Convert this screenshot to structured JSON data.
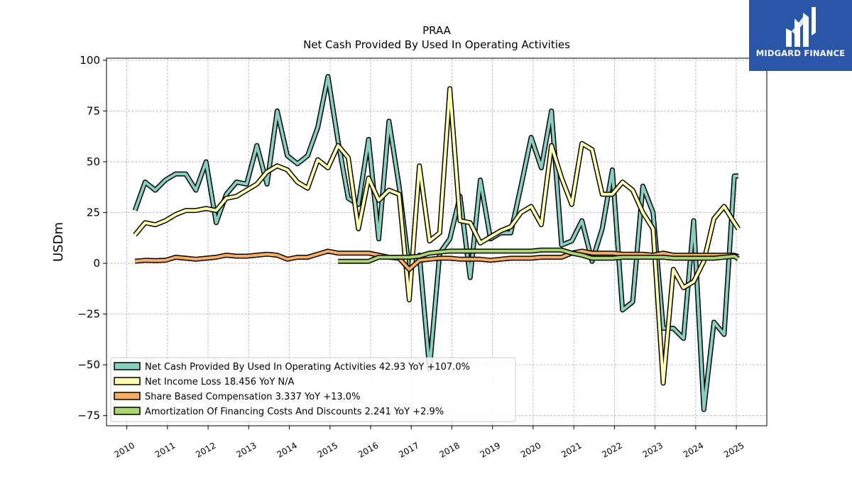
{
  "brand": {
    "name": "MIDGARD FINANCE",
    "logo_icon": "midgard-m-icon",
    "bg_color": "#2a56a8"
  },
  "chart_data": {
    "type": "line",
    "title": "PRAA",
    "subtitle": "Net Cash Provided By Used In Operating Activities",
    "ylabel": "USDm",
    "xlabel": "",
    "ylim": [
      -80,
      101
    ],
    "xlim": [
      2009.5,
      2025.75
    ],
    "yticks": [
      100,
      75,
      50,
      25,
      0,
      -25,
      -50,
      -75
    ],
    "xticks": [
      2010,
      2011,
      2012,
      2013,
      2014,
      2015,
      2016,
      2017,
      2018,
      2019,
      2020,
      2021,
      2022,
      2023,
      2024,
      2025
    ],
    "grid": true,
    "legend_position": "lower-left",
    "series": [
      {
        "name": "Net Cash Provided By Used In Operating Activities",
        "legend_label": "Net Cash Provided By Used In Operating Activities  42.93 YoY +107.0%",
        "color": "#88cfc2",
        "x": [
          2010.2,
          2010.45,
          2010.7,
          2010.95,
          2011.2,
          2011.45,
          2011.7,
          2011.95,
          2012.2,
          2012.45,
          2012.7,
          2012.95,
          2013.2,
          2013.45,
          2013.7,
          2013.95,
          2014.2,
          2014.45,
          2014.7,
          2014.95,
          2015.2,
          2015.45,
          2015.7,
          2015.95,
          2016.2,
          2016.45,
          2016.7,
          2016.95,
          2017.2,
          2017.45,
          2017.7,
          2017.95,
          2018.2,
          2018.45,
          2018.7,
          2018.95,
          2019.2,
          2019.45,
          2019.7,
          2019.95,
          2020.2,
          2020.45,
          2020.7,
          2020.95,
          2021.2,
          2021.45,
          2021.7,
          2021.95,
          2022.2,
          2022.45,
          2022.7,
          2022.95,
          2023.2,
          2023.45,
          2023.7,
          2023.95,
          2024.2,
          2024.45,
          2024.7,
          2024.95,
          2025.05
        ],
        "y": [
          26,
          40,
          36,
          41,
          44,
          44,
          36,
          50,
          20,
          34,
          40,
          39,
          58,
          39,
          75,
          53,
          49,
          53,
          67,
          92,
          60,
          32,
          29,
          61,
          12,
          70,
          38,
          -3,
          4,
          -52,
          5,
          12,
          33,
          -7,
          41,
          12,
          15,
          15,
          38,
          62,
          47,
          75,
          9,
          11,
          21,
          1,
          17,
          46,
          -23,
          -19,
          38,
          25,
          -32,
          -32,
          -37,
          21,
          -72,
          -29,
          -35,
          43,
          43
        ]
      },
      {
        "name": "Net Income Loss",
        "legend_label": "Net Income Loss  18.456 YoY N/A",
        "color": "#ffffb0",
        "x": [
          2010.2,
          2010.45,
          2010.7,
          2010.95,
          2011.2,
          2011.45,
          2011.7,
          2011.95,
          2012.2,
          2012.45,
          2012.7,
          2012.95,
          2013.2,
          2013.45,
          2013.7,
          2013.95,
          2014.2,
          2014.45,
          2014.7,
          2014.95,
          2015.2,
          2015.45,
          2015.7,
          2015.95,
          2016.2,
          2016.45,
          2016.7,
          2016.95,
          2017.2,
          2017.45,
          2017.7,
          2017.95,
          2018.2,
          2018.45,
          2018.7,
          2018.95,
          2019.2,
          2019.45,
          2019.7,
          2019.95,
          2020.2,
          2020.45,
          2020.7,
          2020.95,
          2021.2,
          2021.45,
          2021.7,
          2021.95,
          2022.2,
          2022.45,
          2022.7,
          2022.95,
          2023.2,
          2023.45,
          2023.7,
          2023.95,
          2024.2,
          2024.45,
          2024.7,
          2024.95,
          2025.05
        ],
        "y": [
          14,
          20,
          19,
          21,
          24,
          26,
          26,
          27,
          26,
          32,
          33,
          36,
          39,
          45,
          48,
          46,
          40,
          37,
          51,
          47,
          58,
          52,
          17,
          42,
          31,
          36,
          34,
          -18,
          48,
          11,
          15,
          86,
          21,
          20,
          10,
          13,
          16,
          18,
          25,
          28,
          19,
          58,
          42,
          29,
          59,
          56,
          34,
          34,
          40,
          36,
          25,
          17,
          -59,
          -3,
          -12,
          -9,
          1,
          22,
          28,
          20,
          17
        ]
      },
      {
        "name": "Share Based Compensation",
        "legend_label": "Share Based Compensation  3.337 YoY +13.0%",
        "color": "#f7ad63",
        "x": [
          2010.2,
          2010.45,
          2010.7,
          2010.95,
          2011.2,
          2011.45,
          2011.7,
          2011.95,
          2012.2,
          2012.45,
          2012.7,
          2012.95,
          2013.2,
          2013.45,
          2013.7,
          2013.95,
          2014.2,
          2014.45,
          2014.7,
          2014.95,
          2015.2,
          2015.45,
          2015.7,
          2015.95,
          2016.2,
          2016.45,
          2016.7,
          2016.95,
          2017.2,
          2017.45,
          2017.7,
          2017.95,
          2018.2,
          2018.45,
          2018.7,
          2018.95,
          2019.2,
          2019.45,
          2019.7,
          2019.95,
          2020.2,
          2020.45,
          2020.7,
          2020.95,
          2021.2,
          2021.45,
          2021.7,
          2021.95,
          2022.2,
          2022.45,
          2022.7,
          2022.95,
          2023.2,
          2023.45,
          2023.7,
          2023.95,
          2024.2,
          2024.45,
          2024.7,
          2024.95,
          2025.05
        ],
        "y": [
          1,
          1.5,
          1.3,
          1.5,
          3,
          2.5,
          2,
          2.5,
          3,
          4,
          3.5,
          3.5,
          4,
          4.5,
          4,
          2,
          3,
          3,
          4.5,
          6,
          5,
          5,
          5,
          5,
          4,
          3,
          2.5,
          -3,
          1.5,
          2,
          2.5,
          2.5,
          2,
          2,
          2,
          1.5,
          2,
          2.5,
          2.5,
          2.5,
          3,
          3,
          3,
          5,
          6,
          5,
          5,
          5,
          4.5,
          4.5,
          4.5,
          4,
          5,
          4,
          4,
          4,
          4,
          4,
          4,
          4,
          3.3
        ]
      },
      {
        "name": "Amortization Of Financing Costs And Discounts",
        "legend_label": "Amortization Of Financing Costs And Discounts  2.241 YoY +2.9%",
        "color": "#a9d66e",
        "x": [
          2015.2,
          2015.45,
          2015.7,
          2015.95,
          2016.2,
          2016.45,
          2016.7,
          2016.95,
          2017.2,
          2017.45,
          2017.7,
          2017.95,
          2018.2,
          2018.45,
          2018.7,
          2018.95,
          2019.2,
          2019.45,
          2019.7,
          2019.95,
          2020.2,
          2020.45,
          2020.7,
          2020.95,
          2021.2,
          2021.45,
          2021.7,
          2021.95,
          2022.2,
          2022.45,
          2022.7,
          2022.95,
          2023.2,
          2023.45,
          2023.7,
          2023.95,
          2024.2,
          2024.45,
          2024.7,
          2024.95,
          2025.05
        ],
        "y": [
          1,
          1,
          1,
          1,
          3,
          3,
          3,
          3,
          3.5,
          5,
          5.5,
          6,
          6,
          6,
          6,
          6,
          6,
          6,
          6,
          6,
          6.5,
          6.5,
          6.5,
          5,
          4,
          2.5,
          2.5,
          2.5,
          3,
          3,
          3,
          3,
          3,
          2.5,
          2.5,
          2.5,
          2.5,
          2.5,
          3,
          3.5,
          2.2
        ]
      }
    ]
  }
}
